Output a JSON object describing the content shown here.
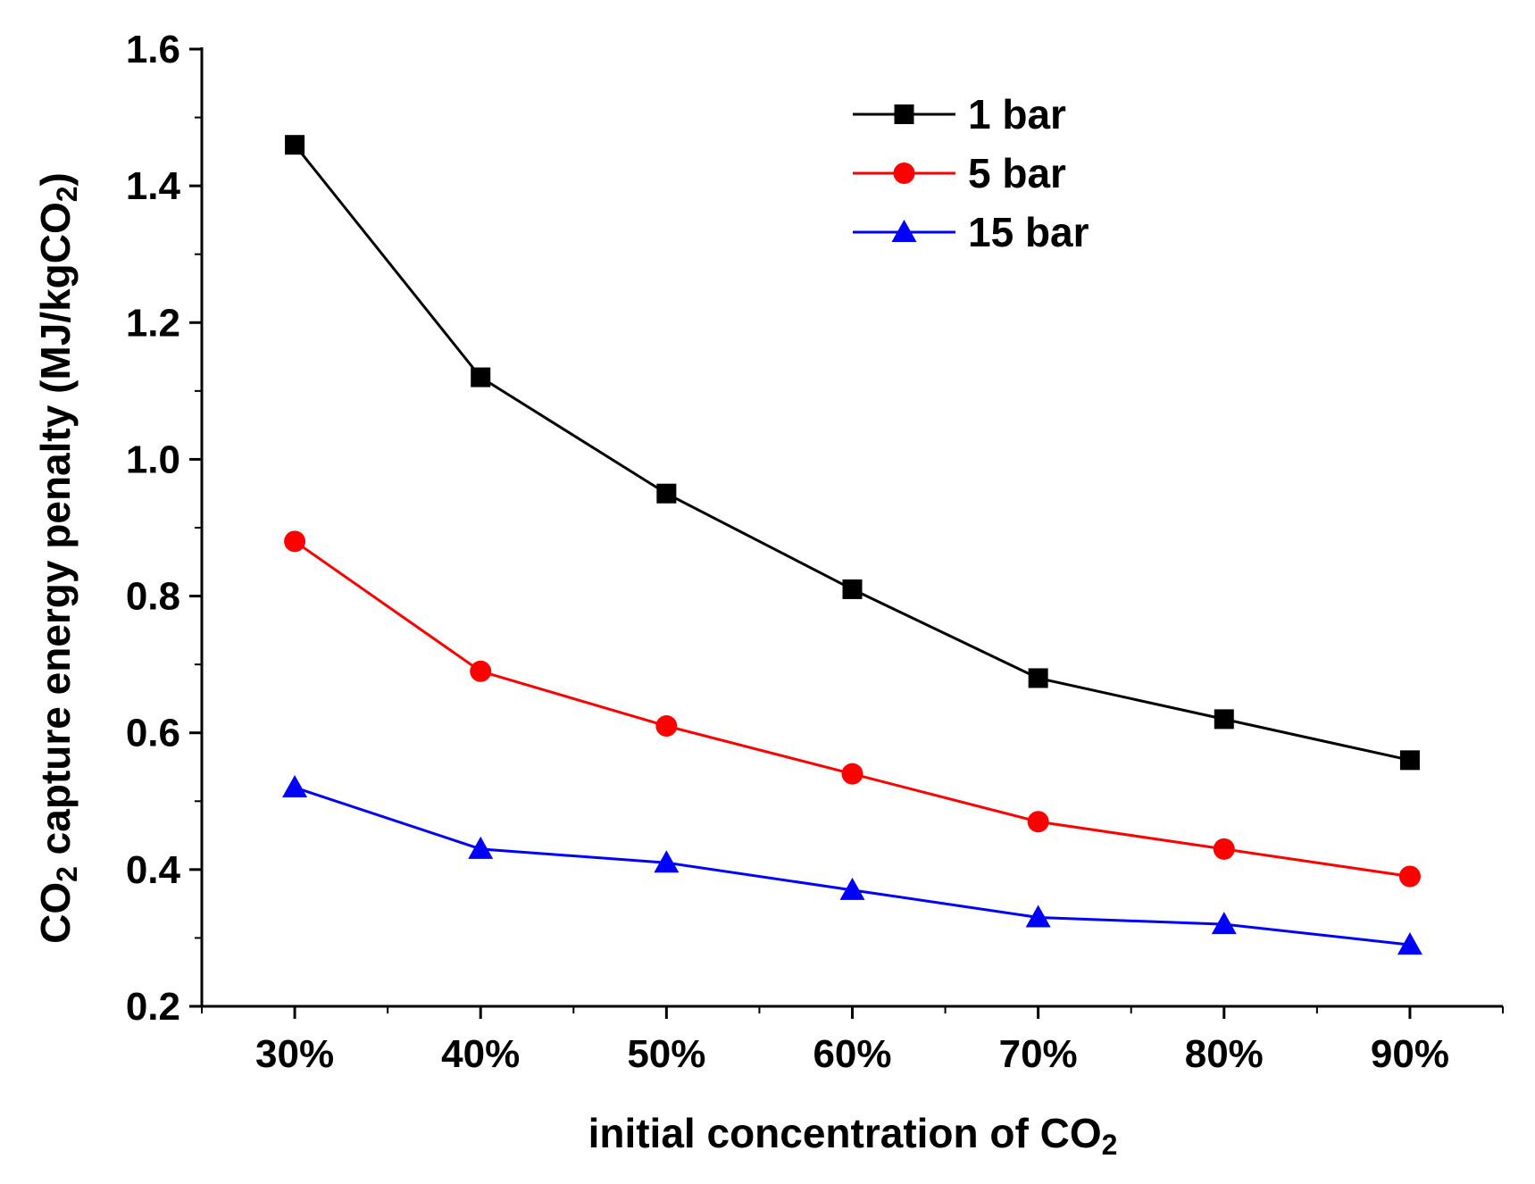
{
  "chart_data": {
    "type": "line",
    "categories": [
      "30%",
      "40%",
      "50%",
      "60%",
      "70%",
      "80%",
      "90%"
    ],
    "x_values": [
      30,
      40,
      50,
      60,
      70,
      80,
      90
    ],
    "xlim": [
      25,
      95
    ],
    "ylim": [
      0.2,
      1.6
    ],
    "y_ticks": [
      0.2,
      0.4,
      0.6,
      0.8,
      1.0,
      1.2,
      1.4,
      1.6
    ],
    "y_tick_labels": [
      "0.2",
      "0.4",
      "0.6",
      "0.8",
      "1.0",
      "1.2",
      "1.4",
      "1.6"
    ],
    "xlabel": {
      "main": "initial concentration of CO",
      "sub": "2"
    },
    "ylabel": {
      "prefix": "CO",
      "prefix_sub": "2",
      "middle": " capture energy penalty (MJ/kgCO",
      "suffix_sub": "2",
      "suffix": ")"
    },
    "grid": false,
    "legend_position": "top-right",
    "series": [
      {
        "name": "1 bar",
        "marker": "square",
        "color": "#000000",
        "values": [
          1.46,
          1.12,
          0.95,
          0.81,
          0.68,
          0.62,
          0.56
        ]
      },
      {
        "name": "5 bar",
        "marker": "circle",
        "color": "#ff0000",
        "values": [
          0.88,
          0.69,
          0.61,
          0.54,
          0.47,
          0.43,
          0.39
        ]
      },
      {
        "name": "15 bar",
        "marker": "triangle",
        "color": "#0000ff",
        "values": [
          0.52,
          0.43,
          0.41,
          0.37,
          0.33,
          0.32,
          0.29
        ]
      }
    ]
  }
}
